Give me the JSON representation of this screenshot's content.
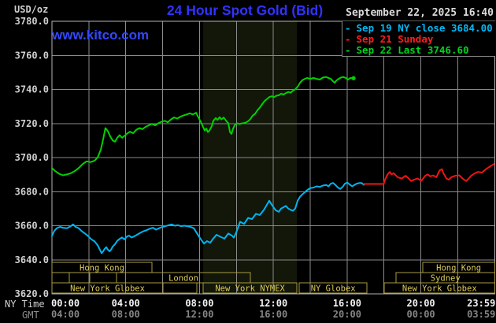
{
  "header": {
    "unit_label": "USD/oz",
    "title": "24 Hour Spot Gold (Bid)",
    "datetime": "September 22, 2025 16:40",
    "watermark": "www.kitco.com",
    "legend": [
      {
        "dash": "-",
        "label": "Sep 19 NY close 3684.00",
        "color": "#00b9f5"
      },
      {
        "dash": "-",
        "label": "Sep 21 Sunday",
        "color": "#ff1e1e"
      },
      {
        "dash": "-",
        "label": "Sep 22 Last 3746.60",
        "color": "#00d41e"
      }
    ]
  },
  "axes": {
    "ny_time_label": "NY Time",
    "gmt_label": "GMT",
    "y_ticks": [
      3780.0,
      3760.0,
      3740.0,
      3720.0,
      3700.0,
      3680.0,
      3660.0,
      3640.0,
      3620.0
    ],
    "x_ticks_ny": [
      "00:00",
      "04:00",
      "08:00",
      "12:00",
      "16:00",
      "20:00",
      "23:59"
    ],
    "x_ticks_gmt": [
      "04:00",
      "08:00",
      "12:00",
      "16:00",
      "20:00",
      "00:00",
      "03:59"
    ],
    "colors": {
      "grid": "#8a8a8a",
      "border": "#b5b5b5",
      "tick_ny": "#f2f2f2",
      "tick_gmt": "#858585",
      "y_tick": "#cfcfcf"
    }
  },
  "sessions": {
    "color_border": "#a89b42",
    "color_text": "#dfcd5a",
    "rows": [
      {
        "boxes": [
          {
            "label": "Hong Kong",
            "start": 0,
            "end": 5.42
          },
          {
            "label": "Hong Kong",
            "start": 20.1,
            "end": 24
          }
        ]
      },
      {
        "boxes": [
          {
            "label": "",
            "start": 0,
            "end": 0.94
          },
          {
            "label": "",
            "start": 0.94,
            "end": 2.05
          },
          {
            "label": "",
            "start": 2.05,
            "end": 3.5
          },
          {
            "label": "London",
            "start": 3.5,
            "end": 10.76
          },
          {
            "label": "Sydney",
            "start": 18.66,
            "end": 24
          }
        ]
      },
      {
        "boxes": [
          {
            "label": "New York Globex",
            "start": 0,
            "end": 6.02
          },
          {
            "label": "",
            "start": 6.02,
            "end": 7.86
          },
          {
            "label": "New York NYMEX",
            "start": 8.2,
            "end": 13.28
          },
          {
            "label": "NY Globex",
            "start": 13.41,
            "end": 17.08
          },
          {
            "label": "New York Globex",
            "start": 18.02,
            "end": 24
          }
        ]
      }
    ]
  },
  "chart_data": {
    "type": "line",
    "title": "24 Hour Spot Gold (Bid)",
    "xlabel": "NY Time (hours 00:00-23:59)",
    "ylabel": "USD/oz",
    "ylim": [
      3620,
      3780
    ],
    "xlim_hours": [
      0,
      24
    ],
    "grid": true,
    "legend_position": "top-right",
    "shaded_region": {
      "start": 8.2,
      "end": 13.28,
      "color": "#12170a"
    },
    "series": [
      {
        "name": "Sep 19 NY close 3684.00",
        "color": "#00b4f0",
        "end_dot": false,
        "points": [
          [
            0,
            3654
          ],
          [
            0.13,
            3657
          ],
          [
            0.26,
            3658.5
          ],
          [
            0.43,
            3659.3
          ],
          [
            0.6,
            3658.8
          ],
          [
            0.81,
            3658.5
          ],
          [
            1.02,
            3659.7
          ],
          [
            1.15,
            3660.8
          ],
          [
            1.28,
            3659.3
          ],
          [
            1.45,
            3658.5
          ],
          [
            1.62,
            3656.7
          ],
          [
            1.79,
            3655.4
          ],
          [
            1.96,
            3653.9
          ],
          [
            2.14,
            3652
          ],
          [
            2.31,
            3650.8
          ],
          [
            2.48,
            3648.5
          ],
          [
            2.6,
            3645.9
          ],
          [
            2.69,
            3643.9
          ],
          [
            2.78,
            3645
          ],
          [
            2.86,
            3646.5
          ],
          [
            2.95,
            3647.4
          ],
          [
            3.03,
            3645.9
          ],
          [
            3.12,
            3645
          ],
          [
            3.2,
            3645.9
          ],
          [
            3.29,
            3647.7
          ],
          [
            3.42,
            3649.2
          ],
          [
            3.54,
            3651.1
          ],
          [
            3.67,
            3652.3
          ],
          [
            3.8,
            3653.1
          ],
          [
            3.93,
            3652
          ],
          [
            4.06,
            3653.6
          ],
          [
            4.18,
            3654.2
          ],
          [
            4.31,
            3653.1
          ],
          [
            4.44,
            3653.6
          ],
          [
            4.61,
            3654.7
          ],
          [
            4.78,
            3655.8
          ],
          [
            4.95,
            3656.7
          ],
          [
            5.12,
            3657.3
          ],
          [
            5.29,
            3658.2
          ],
          [
            5.47,
            3658.8
          ],
          [
            5.64,
            3657.7
          ],
          [
            5.81,
            3658.5
          ],
          [
            5.98,
            3659.3
          ],
          [
            6.15,
            3659.7
          ],
          [
            6.32,
            3660.3
          ],
          [
            6.49,
            3660.8
          ],
          [
            6.66,
            3660
          ],
          [
            6.83,
            3660.3
          ],
          [
            7,
            3659.7
          ],
          [
            7.17,
            3660
          ],
          [
            7.34,
            3659.7
          ],
          [
            7.51,
            3659.3
          ],
          [
            7.69,
            3658.5
          ],
          [
            7.86,
            3655.5
          ],
          [
            8.07,
            3652
          ],
          [
            8.24,
            3649.5
          ],
          [
            8.41,
            3651
          ],
          [
            8.58,
            3650
          ],
          [
            8.71,
            3652
          ],
          [
            8.92,
            3654.7
          ],
          [
            9.14,
            3653.5
          ],
          [
            9.35,
            3652.4
          ],
          [
            9.56,
            3655.4
          ],
          [
            9.78,
            3654
          ],
          [
            9.86,
            3653
          ],
          [
            9.99,
            3656
          ],
          [
            10.2,
            3662.3
          ],
          [
            10.42,
            3661
          ],
          [
            10.63,
            3664.6
          ],
          [
            10.84,
            3663.9
          ],
          [
            11.06,
            3667
          ],
          [
            11.27,
            3666.3
          ],
          [
            11.49,
            3669.3
          ],
          [
            11.78,
            3674.7
          ],
          [
            11.91,
            3672.4
          ],
          [
            12.13,
            3669
          ],
          [
            12.3,
            3668.2
          ],
          [
            12.42,
            3670.1
          ],
          [
            12.55,
            3670.8
          ],
          [
            12.68,
            3671.6
          ],
          [
            12.81,
            3670.1
          ],
          [
            12.94,
            3669.3
          ],
          [
            13.07,
            3668.8
          ],
          [
            13.19,
            3670.1
          ],
          [
            13.32,
            3674.7
          ],
          [
            13.45,
            3677
          ],
          [
            13.58,
            3678.5
          ],
          [
            13.71,
            3679.6
          ],
          [
            13.83,
            3680.8
          ],
          [
            14,
            3682.1
          ],
          [
            14.18,
            3682.4
          ],
          [
            14.35,
            3683.1
          ],
          [
            14.52,
            3682.8
          ],
          [
            14.69,
            3683.6
          ],
          [
            14.86,
            3683.9
          ],
          [
            14.99,
            3683.1
          ],
          [
            15.12,
            3684.7
          ],
          [
            15.24,
            3685.1
          ],
          [
            15.37,
            3683.9
          ],
          [
            15.5,
            3682.4
          ],
          [
            15.63,
            3681.6
          ],
          [
            15.76,
            3682.8
          ],
          [
            15.88,
            3684.7
          ],
          [
            16.01,
            3685.4
          ],
          [
            16.14,
            3684.2
          ],
          [
            16.27,
            3683.1
          ],
          [
            16.4,
            3683.9
          ],
          [
            16.52,
            3684.7
          ],
          [
            16.65,
            3685
          ],
          [
            16.78,
            3685.1
          ],
          [
            16.91,
            3684
          ]
        ]
      },
      {
        "name": "Sep 21 Sunday",
        "color": "#f01414",
        "end_dot": false,
        "points": [
          [
            16.91,
            3684.5
          ],
          [
            17.98,
            3684.5
          ],
          [
            18.06,
            3687
          ],
          [
            18.19,
            3690.1
          ],
          [
            18.32,
            3691.6
          ],
          [
            18.4,
            3690.1
          ],
          [
            18.53,
            3690.8
          ],
          [
            18.74,
            3688.5
          ],
          [
            18.96,
            3687.7
          ],
          [
            19.17,
            3689.3
          ],
          [
            19.3,
            3688.1
          ],
          [
            19.47,
            3686.2
          ],
          [
            19.64,
            3687
          ],
          [
            19.81,
            3687.7
          ],
          [
            20.03,
            3686.4
          ],
          [
            20.24,
            3689.3
          ],
          [
            20.37,
            3690.1
          ],
          [
            20.5,
            3689
          ],
          [
            20.67,
            3689.5
          ],
          [
            20.84,
            3688.5
          ],
          [
            21.01,
            3692.4
          ],
          [
            21.14,
            3693.2
          ],
          [
            21.22,
            3690.8
          ],
          [
            21.39,
            3687.7
          ],
          [
            21.52,
            3687
          ],
          [
            21.65,
            3688.5
          ],
          [
            21.86,
            3689.3
          ],
          [
            22.08,
            3689.6
          ],
          [
            22.29,
            3687.4
          ],
          [
            22.46,
            3686.2
          ],
          [
            22.59,
            3687.7
          ],
          [
            22.72,
            3689.3
          ],
          [
            22.93,
            3690.8
          ],
          [
            23.1,
            3691.6
          ],
          [
            23.31,
            3691.2
          ],
          [
            23.53,
            3693.2
          ],
          [
            23.74,
            3694.7
          ],
          [
            23.96,
            3696.2
          ]
        ]
      },
      {
        "name": "Sep 22 Last 3746.60",
        "color": "#00d200",
        "end_dot": true,
        "points": [
          [
            0,
            3693.9
          ],
          [
            0.17,
            3692.1
          ],
          [
            0.38,
            3690.5
          ],
          [
            0.6,
            3689.6
          ],
          [
            0.81,
            3690.1
          ],
          [
            1.02,
            3690.8
          ],
          [
            1.24,
            3692.1
          ],
          [
            1.45,
            3693.9
          ],
          [
            1.67,
            3696.2
          ],
          [
            1.88,
            3697.8
          ],
          [
            2.09,
            3697.3
          ],
          [
            2.31,
            3698.2
          ],
          [
            2.48,
            3700.1
          ],
          [
            2.65,
            3704.7
          ],
          [
            2.78,
            3710.9
          ],
          [
            2.9,
            3717.3
          ],
          [
            3.03,
            3715.5
          ],
          [
            3.16,
            3712.4
          ],
          [
            3.29,
            3710.1
          ],
          [
            3.42,
            3709.3
          ],
          [
            3.54,
            3711.6
          ],
          [
            3.67,
            3713.2
          ],
          [
            3.8,
            3711.6
          ],
          [
            3.93,
            3712.7
          ],
          [
            4.06,
            3714
          ],
          [
            4.23,
            3715.2
          ],
          [
            4.4,
            3714.3
          ],
          [
            4.57,
            3716.3
          ],
          [
            4.74,
            3717.3
          ],
          [
            4.91,
            3716.7
          ],
          [
            5.08,
            3718.1
          ],
          [
            5.25,
            3718.9
          ],
          [
            5.42,
            3719.8
          ],
          [
            5.59,
            3718.9
          ],
          [
            5.76,
            3720.1
          ],
          [
            5.93,
            3721
          ],
          [
            6.11,
            3721.6
          ],
          [
            6.28,
            3720.7
          ],
          [
            6.45,
            3722.4
          ],
          [
            6.62,
            3723.6
          ],
          [
            6.79,
            3722.9
          ],
          [
            6.96,
            3724
          ],
          [
            7.13,
            3724.7
          ],
          [
            7.3,
            3725.3
          ],
          [
            7.47,
            3726
          ],
          [
            7.64,
            3725.3
          ],
          [
            7.81,
            3726.3
          ],
          [
            7.98,
            3722.7
          ],
          [
            8.11,
            3720.1
          ],
          [
            8.2,
            3717.8
          ],
          [
            8.28,
            3715.9
          ],
          [
            8.37,
            3717
          ],
          [
            8.45,
            3715
          ],
          [
            8.54,
            3715.9
          ],
          [
            8.67,
            3718.6
          ],
          [
            8.75,
            3721.6
          ],
          [
            8.88,
            3723.2
          ],
          [
            8.97,
            3722.1
          ],
          [
            9.09,
            3723.7
          ],
          [
            9.18,
            3722.4
          ],
          [
            9.31,
            3723.5
          ],
          [
            9.44,
            3721.6
          ],
          [
            9.56,
            3720.1
          ],
          [
            9.65,
            3715
          ],
          [
            9.73,
            3713.9
          ],
          [
            9.82,
            3717
          ],
          [
            9.91,
            3719
          ],
          [
            10.03,
            3720.1
          ],
          [
            10.16,
            3719.7
          ],
          [
            10.33,
            3720.1
          ],
          [
            10.5,
            3720.5
          ],
          [
            10.67,
            3721.6
          ],
          [
            10.76,
            3722.7
          ],
          [
            10.89,
            3724.7
          ],
          [
            11.02,
            3725.8
          ],
          [
            11.14,
            3727.8
          ],
          [
            11.27,
            3729.3
          ],
          [
            11.4,
            3731.4
          ],
          [
            11.53,
            3733.2
          ],
          [
            11.66,
            3734.4
          ],
          [
            11.78,
            3735.5
          ],
          [
            11.91,
            3736
          ],
          [
            12.04,
            3735.5
          ],
          [
            12.17,
            3736.3
          ],
          [
            12.3,
            3736.6
          ],
          [
            12.42,
            3737.5
          ],
          [
            12.55,
            3737
          ],
          [
            12.68,
            3737.8
          ],
          [
            12.81,
            3738.5
          ],
          [
            12.94,
            3738.1
          ],
          [
            13.07,
            3739.3
          ],
          [
            13.19,
            3740.1
          ],
          [
            13.32,
            3741.6
          ],
          [
            13.45,
            3743.9
          ],
          [
            13.58,
            3745.5
          ],
          [
            13.71,
            3746.2
          ],
          [
            13.83,
            3746.7
          ],
          [
            14,
            3746.2
          ],
          [
            14.18,
            3746.7
          ],
          [
            14.35,
            3746.2
          ],
          [
            14.52,
            3745.8
          ],
          [
            14.69,
            3747
          ],
          [
            14.86,
            3747.3
          ],
          [
            14.99,
            3746.7
          ],
          [
            15.12,
            3746.2
          ],
          [
            15.24,
            3744.7
          ],
          [
            15.33,
            3743.9
          ],
          [
            15.41,
            3745.1
          ],
          [
            15.54,
            3746.2
          ],
          [
            15.67,
            3747
          ],
          [
            15.8,
            3747.3
          ],
          [
            15.93,
            3746.7
          ],
          [
            16.05,
            3745.8
          ],
          [
            16.18,
            3746.7
          ],
          [
            16.35,
            3746.6
          ]
        ]
      }
    ]
  }
}
